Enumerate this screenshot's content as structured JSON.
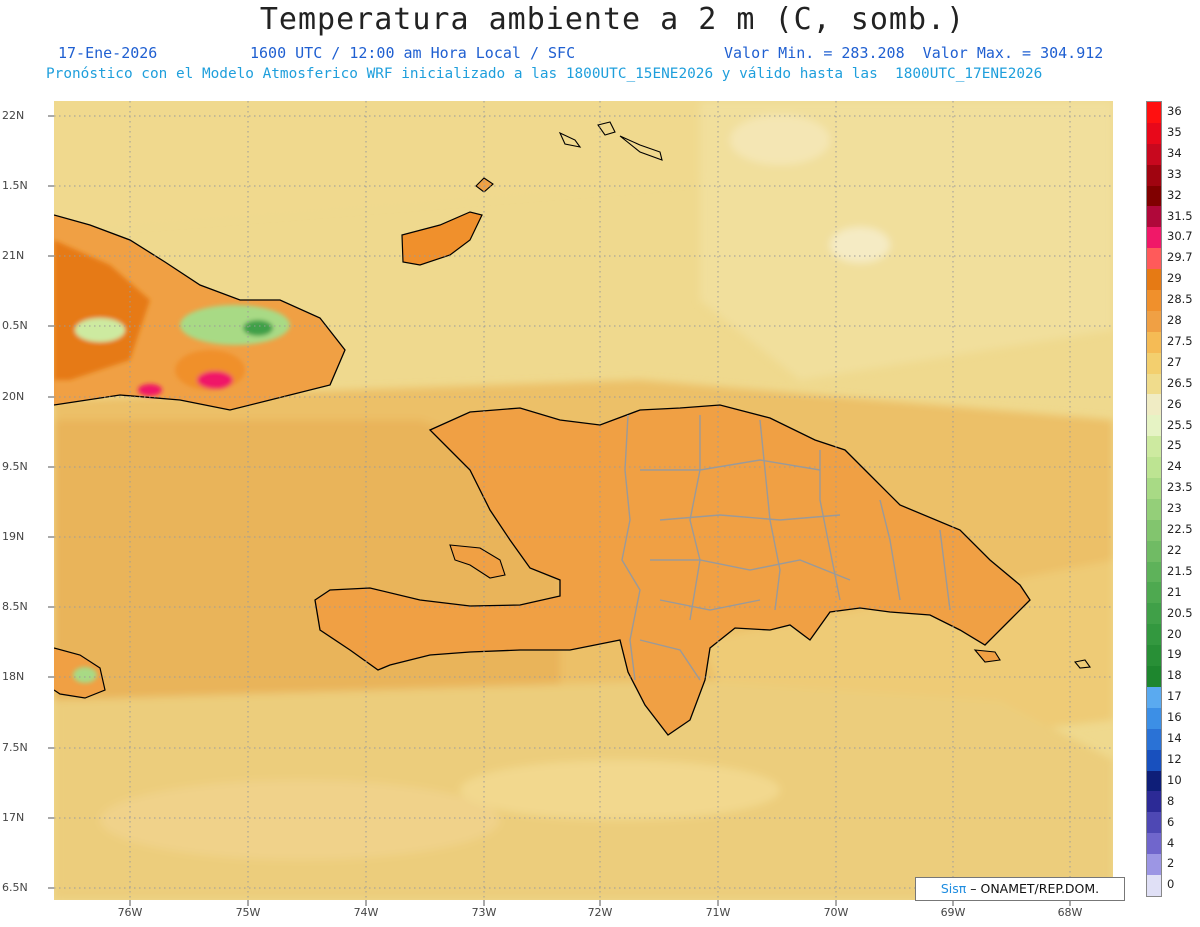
{
  "header": {
    "title": "Temperatura ambiente a 2 m (C, somb.)",
    "date": "17-Ene-2026",
    "time": "1600 UTC / 12:00 am Hora Local / SFC",
    "minmax": "Valor Min. = 283.208  Valor Max. = 304.912",
    "model_info": "Pronóstico con el Modelo Atmosferico WRF inicializado a las 1800UTC_15ENE2026 y válido hasta las  1800UTC_17ENE2026"
  },
  "map": {
    "lat_labels": [
      "22N",
      "1.5N",
      "21N",
      "0.5N",
      "20N",
      "9.5N",
      "19N",
      "8.5N",
      "18N",
      "7.5N",
      "17N",
      "6.5N"
    ],
    "lon_labels": [
      "76W",
      "75W",
      "74W",
      "73W",
      "72W",
      "71W",
      "70W",
      "69W",
      "68W"
    ]
  },
  "legend": {
    "labels": [
      "36",
      "35",
      "34",
      "33",
      "32",
      "31.5",
      "30.7",
      "29.7",
      "29",
      "28.5",
      "28",
      "27.5",
      "27",
      "26.5",
      "26",
      "25.5",
      "25",
      "24",
      "23.5",
      "23",
      "22.5",
      "22",
      "21.5",
      "21",
      "20.5",
      "20",
      "19",
      "18",
      "17",
      "16",
      "14",
      "12",
      "10",
      "8",
      "6",
      "4",
      "2",
      "0"
    ],
    "colors": [
      "#ff1010",
      "#e8081a",
      "#c8081e",
      "#a00410",
      "#800000",
      "#b0083a",
      "#f01868",
      "#ff5a5a",
      "#e67a14",
      "#f0902c",
      "#f0a044",
      "#f5bb55",
      "#f3cf6e",
      "#f0dc8c",
      "#f0ecc4",
      "#e6f3c4",
      "#cdeaa0",
      "#bde492",
      "#a8da85",
      "#94cf79",
      "#82c56e",
      "#70bb64",
      "#5eb25a",
      "#4ea950",
      "#40a048",
      "#33983f",
      "#288f36",
      "#1e862e",
      "#5aaaf0",
      "#3c8fe6",
      "#2a72d6",
      "#1850be",
      "#0e1e78",
      "#2c2a96",
      "#4e48b4",
      "#7066cc",
      "#9c96e4",
      "#e0e0f6"
    ]
  },
  "credit": {
    "brand": "Sisπ",
    "text": " –  ONAMET/REP.DOM."
  }
}
